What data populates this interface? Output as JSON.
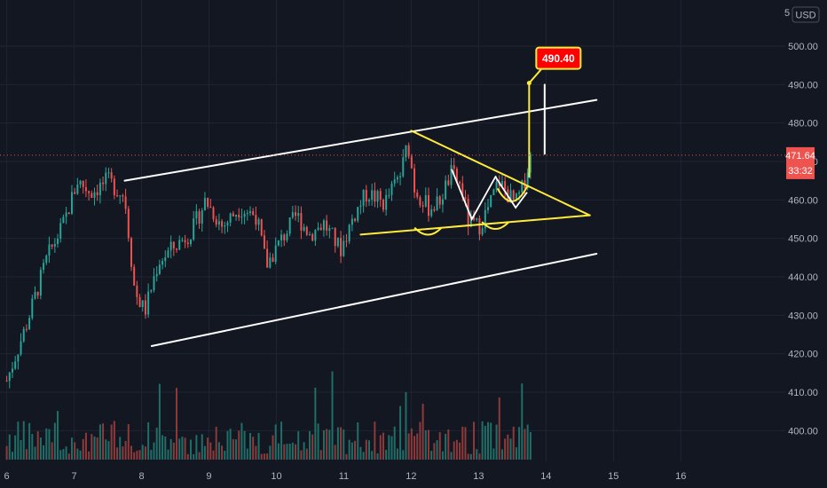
{
  "colors": {
    "background": "#131722",
    "grid": "#1f2432",
    "axis_text": "#b2b5be",
    "up": "#26a69a",
    "down": "#ef5350",
    "vol_up": "#1f6f68",
    "vol_down": "#8e3a3a",
    "channel": "#ffffff",
    "pattern": "#ffeb3b",
    "callout_bg": "#ff0000",
    "callout_border": "#ffeb3b",
    "price_line": "#ef5350"
  },
  "header": {
    "currency_label": "USD",
    "clipped_label": "5"
  },
  "chart_data": {
    "type": "candlestick",
    "title": "",
    "xlabel": "",
    "ylabel": "",
    "ylim": [
      392,
      512
    ],
    "x_ticks": [
      "6",
      "7",
      "8",
      "9",
      "10",
      "11",
      "12",
      "13",
      "14",
      "15",
      "16"
    ],
    "y_ticks": [
      400,
      410,
      420,
      430,
      440,
      450,
      460,
      470,
      480,
      490,
      500
    ],
    "y_tick_labels": [
      "400.00",
      "410.00",
      "420.00",
      "430.00",
      "440.00",
      "450.00",
      "460.00",
      "470.00",
      "480.00",
      "490.00",
      "500.00"
    ],
    "last_price": 471.64,
    "last_price_label": "471.64",
    "countdown": "33:32",
    "callout_value": 490.4,
    "callout_label": "490.40",
    "grid": true,
    "price_path": [
      [
        6.0,
        413
      ],
      [
        6.3,
        428
      ],
      [
        6.6,
        445
      ],
      [
        6.85,
        454
      ],
      [
        7.05,
        465
      ],
      [
        7.25,
        462
      ],
      [
        7.5,
        465
      ],
      [
        7.75,
        461
      ],
      [
        7.9,
        436
      ],
      [
        8.05,
        431
      ],
      [
        8.25,
        444
      ],
      [
        8.5,
        448
      ],
      [
        8.75,
        452
      ],
      [
        8.95,
        460
      ],
      [
        9.2,
        453
      ],
      [
        9.45,
        458
      ],
      [
        9.7,
        456
      ],
      [
        9.85,
        443
      ],
      [
        10.05,
        449
      ],
      [
        10.3,
        456
      ],
      [
        10.5,
        451
      ],
      [
        10.7,
        454
      ],
      [
        10.95,
        447
      ],
      [
        11.15,
        456
      ],
      [
        11.35,
        462
      ],
      [
        11.6,
        459
      ],
      [
        11.85,
        467
      ],
      [
        11.95,
        475
      ],
      [
        12.05,
        463
      ],
      [
        12.25,
        458
      ],
      [
        12.4,
        459
      ],
      [
        12.6,
        467
      ],
      [
        12.75,
        463
      ],
      [
        12.85,
        454
      ],
      [
        13.0,
        453
      ],
      [
        13.15,
        458
      ],
      [
        13.3,
        465
      ],
      [
        13.45,
        461
      ],
      [
        13.55,
        459
      ],
      [
        13.65,
        463
      ],
      [
        13.78,
        472
      ]
    ],
    "drawings": {
      "upper_channel": [
        [
          7.75,
          465
        ],
        [
          14.75,
          486
        ]
      ],
      "lower_channel": [
        [
          8.15,
          422
        ],
        [
          14.75,
          446
        ]
      ],
      "triangle": [
        [
          12.0,
          478
        ],
        [
          14.65,
          456
        ],
        [
          11.25,
          451
        ]
      ],
      "vertical_spike": [
        [
          13.75,
          490.4
        ],
        [
          13.75,
          466
        ]
      ],
      "white_spike": [
        [
          13.98,
          490
        ],
        [
          13.98,
          472
        ]
      ]
    }
  }
}
